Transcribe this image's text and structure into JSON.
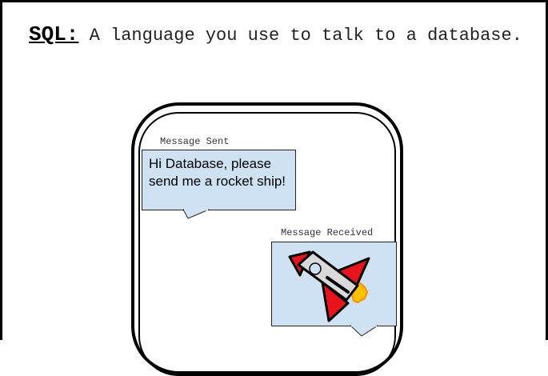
{
  "definition": {
    "term": "SQL:",
    "text": "A language you use to talk to a database."
  },
  "chat": {
    "sent_caption": "Message Sent",
    "sent_text": "Hi Database, please send me a rocket ship!",
    "received_caption": "Message Received",
    "received_image": "rocket-ship-icon"
  },
  "colors": {
    "bubble": "#cfe2f3",
    "rocket_fins": "#e8131b",
    "rocket_body": "#d9d9d9",
    "rocket_flame": "#ffc000"
  }
}
